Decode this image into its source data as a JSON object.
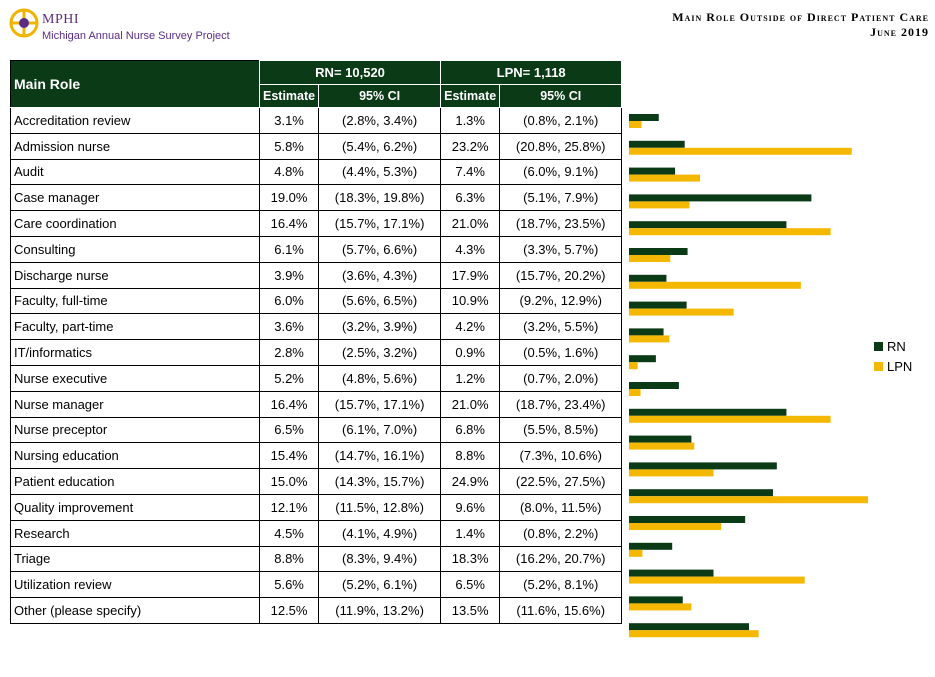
{
  "header": {
    "org_name": "MPHI",
    "project_name": "Michigan Annual Nurse Survey Project",
    "title_line1": "Main Role Outside of Direct Patient Care",
    "title_line2": "June 2019"
  },
  "table": {
    "role_header": "Main Role",
    "rn_header": "RN= 10,520",
    "lpn_header": "LPN= 1,118",
    "estimate_header": "Estimate",
    "ci_header": "95% CI"
  },
  "legend": {
    "rn": "RN",
    "lpn": "LPN"
  },
  "colors": {
    "rn": "#0b3a17",
    "lpn": "#f5b800",
    "header_bg": "#0b3a17"
  },
  "chart_data": {
    "type": "bar",
    "orientation": "horizontal",
    "categories": [
      "Accreditation review",
      "Admission nurse",
      "Audit",
      "Case manager",
      "Care coordination",
      "Consulting",
      "Discharge nurse",
      "Faculty, full-time",
      "Faculty, part-time",
      "IT/informatics",
      "Nurse executive",
      "Nurse manager",
      "Nurse preceptor",
      "Nursing education",
      "Patient education",
      "Quality improvement",
      "Research",
      "Triage",
      "Utilization review",
      "Other (please specify)"
    ],
    "series": [
      {
        "name": "RN",
        "values": [
          3.1,
          5.8,
          4.8,
          19.0,
          16.4,
          6.1,
          3.9,
          6.0,
          3.6,
          2.8,
          5.2,
          16.4,
          6.5,
          15.4,
          15.0,
          12.1,
          4.5,
          8.8,
          5.6,
          12.5
        ]
      },
      {
        "name": "LPN",
        "values": [
          1.3,
          23.2,
          7.4,
          6.3,
          21.0,
          4.3,
          17.9,
          10.9,
          4.2,
          0.9,
          1.2,
          21.0,
          6.8,
          8.8,
          24.9,
          9.6,
          1.4,
          18.3,
          6.5,
          13.5
        ]
      }
    ],
    "rows": [
      {
        "role": "Accreditation review",
        "rn_est": "3.1%",
        "rn_ci": "(2.8%, 3.4%)",
        "lpn_est": "1.3%",
        "lpn_ci": "(0.8%, 2.1%)"
      },
      {
        "role": "Admission nurse",
        "rn_est": "5.8%",
        "rn_ci": "(5.4%, 6.2%)",
        "lpn_est": "23.2%",
        "lpn_ci": "(20.8%, 25.8%)"
      },
      {
        "role": "Audit",
        "rn_est": "4.8%",
        "rn_ci": "(4.4%, 5.3%)",
        "lpn_est": "7.4%",
        "lpn_ci": "(6.0%, 9.1%)"
      },
      {
        "role": "Case manager",
        "rn_est": "19.0%",
        "rn_ci": "(18.3%, 19.8%)",
        "lpn_est": "6.3%",
        "lpn_ci": "(5.1%, 7.9%)"
      },
      {
        "role": "Care coordination",
        "rn_est": "16.4%",
        "rn_ci": "(15.7%, 17.1%)",
        "lpn_est": "21.0%",
        "lpn_ci": "(18.7%, 23.5%)"
      },
      {
        "role": "Consulting",
        "rn_est": "6.1%",
        "rn_ci": "(5.7%, 6.6%)",
        "lpn_est": "4.3%",
        "lpn_ci": "(3.3%, 5.7%)"
      },
      {
        "role": "Discharge nurse",
        "rn_est": "3.9%",
        "rn_ci": "(3.6%, 4.3%)",
        "lpn_est": "17.9%",
        "lpn_ci": "(15.7%, 20.2%)"
      },
      {
        "role": "Faculty, full-time",
        "rn_est": "6.0%",
        "rn_ci": "(5.6%, 6.5%)",
        "lpn_est": "10.9%",
        "lpn_ci": "(9.2%, 12.9%)"
      },
      {
        "role": "Faculty, part-time",
        "rn_est": "3.6%",
        "rn_ci": "(3.2%, 3.9%)",
        "lpn_est": "4.2%",
        "lpn_ci": "(3.2%, 5.5%)"
      },
      {
        "role": "IT/informatics",
        "rn_est": "2.8%",
        "rn_ci": "(2.5%, 3.2%)",
        "lpn_est": "0.9%",
        "lpn_ci": "(0.5%, 1.6%)"
      },
      {
        "role": "Nurse executive",
        "rn_est": "5.2%",
        "rn_ci": "(4.8%, 5.6%)",
        "lpn_est": "1.2%",
        "lpn_ci": "(0.7%, 2.0%)"
      },
      {
        "role": "Nurse manager",
        "rn_est": "16.4%",
        "rn_ci": "(15.7%, 17.1%)",
        "lpn_est": "21.0%",
        "lpn_ci": "(18.7%, 23.4%)"
      },
      {
        "role": "Nurse preceptor",
        "rn_est": "6.5%",
        "rn_ci": "(6.1%, 7.0%)",
        "lpn_est": "6.8%",
        "lpn_ci": "(5.5%, 8.5%)"
      },
      {
        "role": "Nursing education",
        "rn_est": "15.4%",
        "rn_ci": "(14.7%, 16.1%)",
        "lpn_est": "8.8%",
        "lpn_ci": "(7.3%, 10.6%)"
      },
      {
        "role": "Patient education",
        "rn_est": "15.0%",
        "rn_ci": "(14.3%, 15.7%)",
        "lpn_est": "24.9%",
        "lpn_ci": "(22.5%, 27.5%)"
      },
      {
        "role": "Quality improvement",
        "rn_est": "12.1%",
        "rn_ci": "(11.5%, 12.8%)",
        "lpn_est": "9.6%",
        "lpn_ci": "(8.0%, 11.5%)"
      },
      {
        "role": "Research",
        "rn_est": "4.5%",
        "rn_ci": "(4.1%, 4.9%)",
        "lpn_est": "1.4%",
        "lpn_ci": "(0.8%, 2.2%)"
      },
      {
        "role": "Triage",
        "rn_est": "8.8%",
        "rn_ci": "(8.3%, 9.4%)",
        "lpn_est": "18.3%",
        "lpn_ci": "(16.2%, 20.7%)"
      },
      {
        "role": "Utilization review",
        "rn_est": "5.6%",
        "rn_ci": "(5.2%, 6.1%)",
        "lpn_est": "6.5%",
        "lpn_ci": "(5.2%, 8.1%)"
      },
      {
        "role": "Other (please specify)",
        "rn_est": "12.5%",
        "rn_ci": "(11.9%, 13.2%)",
        "lpn_est": "13.5%",
        "lpn_ci": "(11.6%, 15.6%)"
      }
    ]
  }
}
